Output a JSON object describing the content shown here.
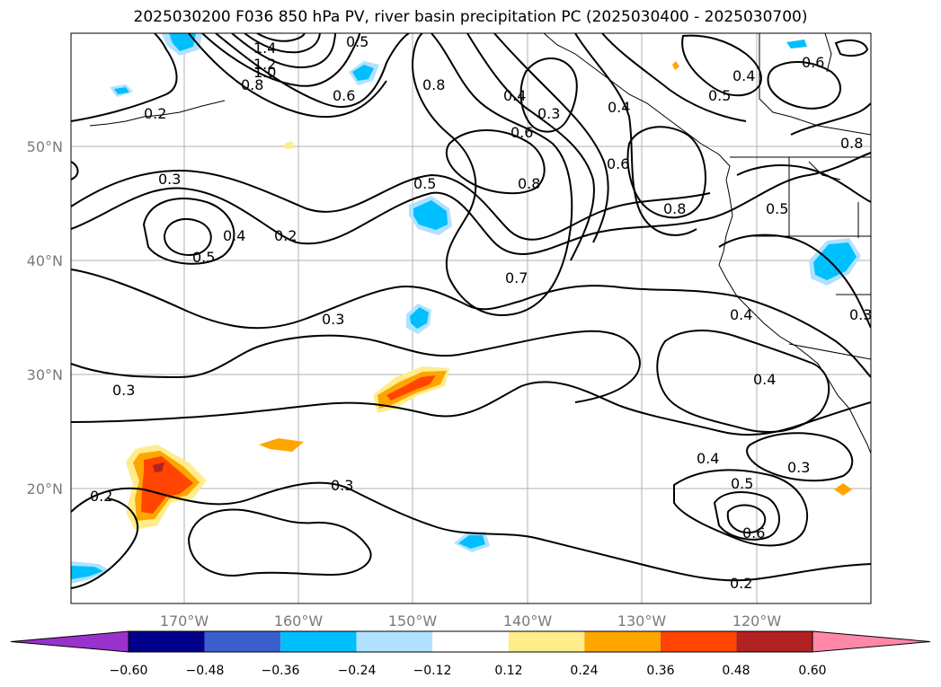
{
  "title": "2025030200 F036 850 hPa PV, river basin precipitation PC (2025030400 - 2025030700)",
  "lon_labels": [
    "170°W",
    "160°W",
    "150°W",
    "140°W",
    "130°W",
    "120°W"
  ],
  "lat_labels": [
    "50°N",
    "40°N",
    "30°N",
    "20°N"
  ],
  "contour_labels": [
    "1.4",
    "1.2",
    "1.0",
    "0.8",
    "0.5",
    "0.6",
    "0.2",
    "0.8",
    "0.4",
    "0.3",
    "0.6",
    "0.8",
    "0.7",
    "0.5",
    "0.6",
    "0.4",
    "0.5",
    "0.4",
    "0.6",
    "0.8",
    "0.8",
    "0.5",
    "0.3",
    "0.5",
    "0.4",
    "0.2",
    "0.3",
    "0.4",
    "0.3",
    "0.4",
    "0.3",
    "0.3",
    "0.2",
    "0.4",
    "0.5",
    "0.3",
    "0.6",
    "0.2"
  ],
  "colorbar": {
    "ticks": [
      "−0.60",
      "−0.48",
      "−0.36",
      "−0.24",
      "−0.12",
      "0.12",
      "0.24",
      "0.36",
      "0.48",
      "0.60"
    ],
    "colors": [
      "#9932cc",
      "#00008b",
      "#3a5fcd",
      "#00bfff",
      "#b0e2ff",
      "#ffffff",
      "#ffec8b",
      "#ffa500",
      "#ff4500",
      "#b22222",
      "#ff88aa"
    ]
  }
}
